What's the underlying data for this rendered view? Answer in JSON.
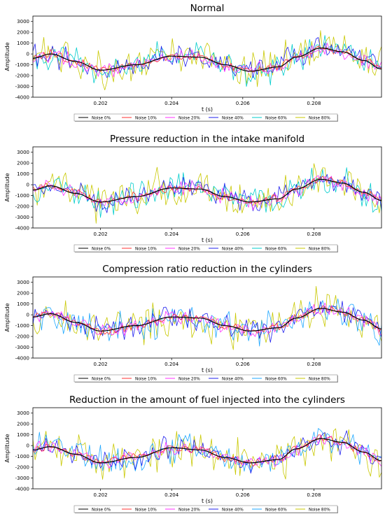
{
  "chart_data": [
    {
      "type": "line",
      "title": "Normal",
      "xlabel": "t (s)",
      "ylabel": "Amplitude",
      "xlim": [
        0.2001,
        0.2099
      ],
      "ylim": [
        -4000,
        3500
      ],
      "xticks": [
        0.202,
        0.204,
        0.206,
        0.208
      ],
      "xtick_labels": [
        "0.202",
        "0.204",
        "0.206",
        "0.208"
      ],
      "yticks": [
        -4000,
        -3000,
        -2000,
        -1000,
        0,
        1000,
        2000,
        3000
      ],
      "ytick_labels": [
        "-4000",
        "-3000",
        "-2000",
        "-1000",
        "0",
        "1000",
        "2000",
        "3000"
      ],
      "grid": false,
      "legend_position": "bottom-center",
      "base_signal": {
        "x": [
          0.2001,
          0.2006,
          0.2013,
          0.202,
          0.203,
          0.204,
          0.2048,
          0.2055,
          0.2062,
          0.207,
          0.2075,
          0.2082,
          0.2088,
          0.2094,
          0.2099
        ],
        "y": [
          -400,
          0,
          -700,
          -1500,
          -1000,
          -200,
          -300,
          -1000,
          -1600,
          -1200,
          -300,
          550,
          200,
          -600,
          -1400
        ]
      },
      "series": [
        {
          "name": "Noise 0%",
          "noise_std": 0,
          "color": "#000000"
        },
        {
          "name": "Noise 10%",
          "noise_std": 250,
          "color": "#ff3333"
        },
        {
          "name": "Noise 20%",
          "noise_std": 450,
          "color": "#ff33ff"
        },
        {
          "name": "Noise 40%",
          "noise_std": 700,
          "color": "#2222ee"
        },
        {
          "name": "Noise 60%",
          "noise_std": 950,
          "color": "#00cccc"
        },
        {
          "name": "Noise 80%",
          "noise_std": 1200,
          "color": "#c8c800"
        }
      ]
    },
    {
      "type": "line",
      "title": "Pressure reduction in the intake manifold",
      "xlabel": "t (s)",
      "ylabel": "Amplitude",
      "xlim": [
        0.2001,
        0.2099
      ],
      "ylim": [
        -4000,
        3500
      ],
      "xticks": [
        0.202,
        0.204,
        0.206,
        0.208
      ],
      "xtick_labels": [
        "0.202",
        "0.204",
        "0.206",
        "0.208"
      ],
      "yticks": [
        -4000,
        -3000,
        -2000,
        -1000,
        0,
        1000,
        2000,
        3000
      ],
      "ytick_labels": [
        "-4000",
        "-3000",
        "-2000",
        "-1000",
        "0",
        "1000",
        "2000",
        "3000"
      ],
      "grid": false,
      "legend_position": "bottom-center",
      "base_signal": {
        "x": [
          0.2001,
          0.2006,
          0.2013,
          0.202,
          0.203,
          0.204,
          0.2048,
          0.2055,
          0.2062,
          0.207,
          0.2075,
          0.2082,
          0.2088,
          0.2094,
          0.2099
        ],
        "y": [
          -500,
          -100,
          -800,
          -1600,
          -1100,
          -300,
          -400,
          -1100,
          -1600,
          -1300,
          -400,
          500,
          150,
          -700,
          -1450
        ]
      },
      "series": [
        {
          "name": "Noise 0%",
          "noise_std": 0,
          "color": "#000000"
        },
        {
          "name": "Noise 10%",
          "noise_std": 250,
          "color": "#ff3333"
        },
        {
          "name": "Noise 20%",
          "noise_std": 450,
          "color": "#ff33ff"
        },
        {
          "name": "Noise 40%",
          "noise_std": 700,
          "color": "#2222ee"
        },
        {
          "name": "Noise 60%",
          "noise_std": 950,
          "color": "#00cccc"
        },
        {
          "name": "Noise 80%",
          "noise_std": 1200,
          "color": "#c8c800"
        }
      ]
    },
    {
      "type": "line",
      "title": "Compression ratio reduction in the cylinders",
      "xlabel": "t (s)",
      "ylabel": "Amplitude",
      "xlim": [
        0.2001,
        0.2099
      ],
      "ylim": [
        -4000,
        3500
      ],
      "xticks": [
        0.202,
        0.204,
        0.206,
        0.208
      ],
      "xtick_labels": [
        "0.202",
        "0.204",
        "0.206",
        "0.208"
      ],
      "yticks": [
        -4000,
        -3000,
        -2000,
        -1000,
        0,
        1000,
        2000,
        3000
      ],
      "ytick_labels": [
        "-4000",
        "-3000",
        "-2000",
        "-1000",
        "0",
        "1000",
        "2000",
        "3000"
      ],
      "grid": false,
      "legend_position": "bottom-center",
      "base_signal": {
        "x": [
          0.2001,
          0.2006,
          0.2013,
          0.202,
          0.203,
          0.204,
          0.2048,
          0.2055,
          0.2062,
          0.207,
          0.2075,
          0.2082,
          0.2088,
          0.2094,
          0.2099
        ],
        "y": [
          -200,
          100,
          -700,
          -1500,
          -1000,
          -200,
          -300,
          -1000,
          -1500,
          -1200,
          -300,
          600,
          250,
          -500,
          -1300
        ]
      },
      "series": [
        {
          "name": "Noise 0%",
          "noise_std": 0,
          "color": "#000000"
        },
        {
          "name": "Noise 10%",
          "noise_std": 250,
          "color": "#ff3333"
        },
        {
          "name": "Noise 20%",
          "noise_std": 450,
          "color": "#ff33ff"
        },
        {
          "name": "Noise 40%",
          "noise_std": 700,
          "color": "#2222ee"
        },
        {
          "name": "Noise 60%",
          "noise_std": 950,
          "color": "#1ea7ff"
        },
        {
          "name": "Noise 80%",
          "noise_std": 1200,
          "color": "#c8c800"
        }
      ]
    },
    {
      "type": "line",
      "title": "Reduction in the amount of fuel injected into the cylinders",
      "xlabel": "t (s)",
      "ylabel": "Amplitude",
      "xlim": [
        0.2001,
        0.2099
      ],
      "ylim": [
        -4000,
        3500
      ],
      "xticks": [
        0.202,
        0.204,
        0.206,
        0.208
      ],
      "xtick_labels": [
        "0.202",
        "0.204",
        "0.206",
        "0.208"
      ],
      "yticks": [
        -4000,
        -3000,
        -2000,
        -1000,
        0,
        1000,
        2000,
        3000
      ],
      "ytick_labels": [
        "-4000",
        "-3000",
        "-2000",
        "-1000",
        "0",
        "1000",
        "2000",
        "3000"
      ],
      "grid": false,
      "legend_position": "bottom-center",
      "base_signal": {
        "x": [
          0.2001,
          0.2006,
          0.2013,
          0.202,
          0.203,
          0.204,
          0.2048,
          0.2055,
          0.2062,
          0.207,
          0.2075,
          0.2082,
          0.2088,
          0.2094,
          0.2099
        ],
        "y": [
          -400,
          -100,
          -800,
          -1600,
          -1100,
          -200,
          -400,
          -1100,
          -1600,
          -1300,
          -300,
          650,
          300,
          -600,
          -1400
        ]
      },
      "series": [
        {
          "name": "Noise 0%",
          "noise_std": 0,
          "color": "#000000"
        },
        {
          "name": "Noise 10%",
          "noise_std": 250,
          "color": "#ff3333"
        },
        {
          "name": "Noise 20%",
          "noise_std": 450,
          "color": "#ff33ff"
        },
        {
          "name": "Noise 40%",
          "noise_std": 700,
          "color": "#2222ee"
        },
        {
          "name": "Noise 60%",
          "noise_std": 950,
          "color": "#1ea7ff"
        },
        {
          "name": "Noise 80%",
          "noise_std": 1200,
          "color": "#c8c800"
        }
      ]
    }
  ]
}
